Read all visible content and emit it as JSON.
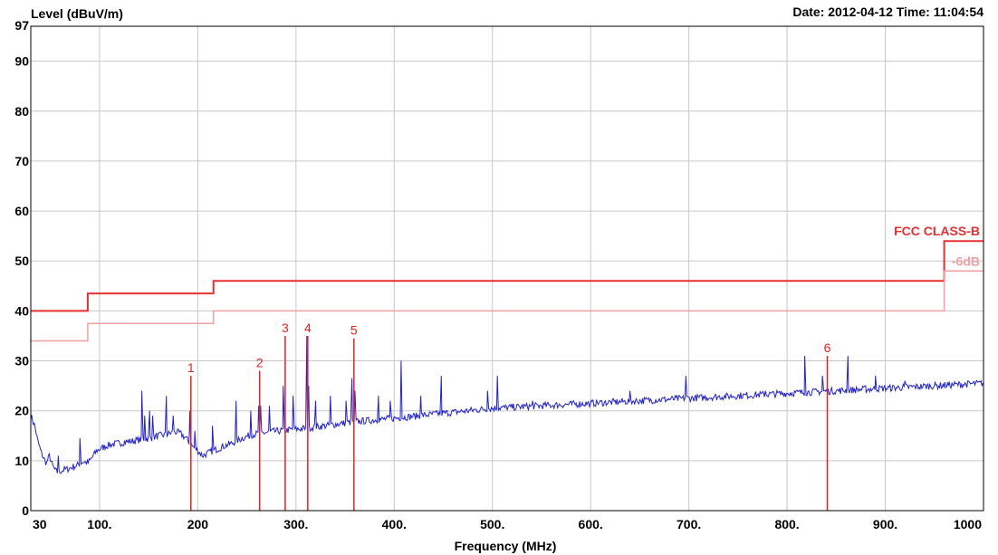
{
  "chart_data": {
    "type": "line",
    "title": "",
    "ylabel": "Level (dBuV/m)",
    "xlabel": "Frequency (MHz)",
    "date_time": "Date: 2012-04-12  Time: 11:04:54",
    "xlim": [
      30,
      1000
    ],
    "ylim": [
      0,
      97
    ],
    "x_ticks": [
      {
        "value": 30,
        "label": "30"
      },
      {
        "value": 100,
        "label": "100."
      },
      {
        "value": 200,
        "label": "200"
      },
      {
        "value": 300,
        "label": "300."
      },
      {
        "value": 400,
        "label": "400."
      },
      {
        "value": 500,
        "label": "500."
      },
      {
        "value": 600,
        "label": "600."
      },
      {
        "value": 700,
        "label": "700."
      },
      {
        "value": 800,
        "label": "800."
      },
      {
        "value": 900,
        "label": "900."
      },
      {
        "value": 1000,
        "label": "1000"
      }
    ],
    "y_ticks": [
      {
        "value": 0,
        "label": "0"
      },
      {
        "value": 10,
        "label": "10"
      },
      {
        "value": 20,
        "label": "20"
      },
      {
        "value": 30,
        "label": "30"
      },
      {
        "value": 40,
        "label": "40"
      },
      {
        "value": 50,
        "label": "50"
      },
      {
        "value": 60,
        "label": "60"
      },
      {
        "value": 70,
        "label": "70"
      },
      {
        "value": 80,
        "label": "80"
      },
      {
        "value": 90,
        "label": "90"
      },
      {
        "value": 97,
        "label": "97"
      }
    ],
    "grid": true,
    "colors": {
      "trace": "#2020d8",
      "limit": "#e83030",
      "margin": "#f0a0a0",
      "marker": "#e82020",
      "grid": "#c8c8c8"
    },
    "limit_lines": [
      {
        "name": "FCC CLASS-B",
        "points": [
          [
            30,
            40
          ],
          [
            88,
            40
          ],
          [
            88,
            43.5
          ],
          [
            216,
            43.5
          ],
          [
            216,
            46
          ],
          [
            960,
            46
          ],
          [
            960,
            54
          ],
          [
            1000,
            54
          ]
        ]
      },
      {
        "name": "-6dB",
        "points": [
          [
            30,
            34
          ],
          [
            88,
            34
          ],
          [
            88,
            37.5
          ],
          [
            216,
            37.5
          ],
          [
            216,
            40
          ],
          [
            960,
            40
          ],
          [
            960,
            48
          ],
          [
            1000,
            48
          ]
        ]
      }
    ],
    "series": [
      {
        "name": "",
        "baseline": [
          [
            30,
            19
          ],
          [
            34,
            17
          ],
          [
            37,
            14
          ],
          [
            40,
            12
          ],
          [
            43,
            10.5
          ],
          [
            46,
            9.5
          ],
          [
            49,
            11
          ],
          [
            52,
            9
          ],
          [
            55,
            8
          ],
          [
            58,
            7.5
          ],
          [
            61,
            8
          ],
          [
            64,
            8.2
          ],
          [
            67,
            8.3
          ],
          [
            70,
            8.5
          ],
          [
            73,
            8.8
          ],
          [
            77,
            9
          ],
          [
            80,
            9.5
          ],
          [
            84,
            9.8
          ],
          [
            88,
            9.5
          ],
          [
            92,
            10.5
          ],
          [
            97,
            12
          ],
          [
            102,
            12.5
          ],
          [
            107,
            13
          ],
          [
            113,
            13.3
          ],
          [
            120,
            13.5
          ],
          [
            128,
            13.8
          ],
          [
            136,
            14
          ],
          [
            144,
            14.3
          ],
          [
            152,
            14.5
          ],
          [
            160,
            15
          ],
          [
            168,
            15.2
          ],
          [
            176,
            15.8
          ],
          [
            182,
            15.5
          ],
          [
            188,
            14.5
          ],
          [
            194,
            13
          ],
          [
            200,
            12
          ],
          [
            205,
            11
          ],
          [
            210,
            11.5
          ],
          [
            216,
            12
          ],
          [
            225,
            12.8
          ],
          [
            235,
            13.5
          ],
          [
            245,
            14.5
          ],
          [
            255,
            15.2
          ],
          [
            265,
            15.5
          ],
          [
            275,
            15.8
          ],
          [
            285,
            16
          ],
          [
            295,
            16.2
          ],
          [
            310,
            16.5
          ],
          [
            330,
            17
          ],
          [
            360,
            17.8
          ],
          [
            400,
            18.5
          ],
          [
            450,
            19.5
          ],
          [
            500,
            20.5
          ],
          [
            550,
            21
          ],
          [
            600,
            21.5
          ],
          [
            650,
            22
          ],
          [
            700,
            22.5
          ],
          [
            750,
            23
          ],
          [
            800,
            23.5
          ],
          [
            850,
            24
          ],
          [
            900,
            24.5
          ],
          [
            950,
            25
          ],
          [
            1000,
            25.5
          ]
        ],
        "spikes": [
          [
            58,
            11
          ],
          [
            80,
            14.5
          ],
          [
            143,
            24
          ],
          [
            146,
            19
          ],
          [
            151,
            20
          ],
          [
            154,
            19
          ],
          [
            168,
            23
          ],
          [
            175,
            19
          ],
          [
            192,
            20
          ],
          [
            197,
            16
          ],
          [
            215,
            17
          ],
          [
            239,
            22
          ],
          [
            254,
            20
          ],
          [
            262,
            21
          ],
          [
            264,
            21
          ],
          [
            273,
            21
          ],
          [
            287,
            25
          ],
          [
            297,
            23
          ],
          [
            311,
            35
          ],
          [
            313,
            25
          ],
          [
            320,
            22
          ],
          [
            335,
            23
          ],
          [
            351,
            22
          ],
          [
            357,
            26.5
          ],
          [
            360,
            24
          ],
          [
            384,
            23
          ],
          [
            396,
            22
          ],
          [
            407,
            30
          ],
          [
            427,
            23
          ],
          [
            448,
            27
          ],
          [
            495,
            24
          ],
          [
            505,
            27
          ],
          [
            541,
            22
          ],
          [
            600,
            21.5
          ],
          [
            640,
            24
          ],
          [
            697,
            27
          ],
          [
            778,
            24
          ],
          [
            818,
            31
          ],
          [
            836,
            27
          ],
          [
            862,
            31
          ],
          [
            880,
            25
          ],
          [
            890,
            27
          ],
          [
            920,
            26
          ]
        ]
      }
    ],
    "markers": [
      {
        "label": "1",
        "frequency": 193,
        "level": 27
      },
      {
        "label": "2",
        "frequency": 263,
        "level": 28
      },
      {
        "label": "3",
        "frequency": 289,
        "level": 35
      },
      {
        "label": "4",
        "frequency": 312,
        "level": 35
      },
      {
        "label": "5",
        "frequency": 359,
        "level": 34.5
      },
      {
        "label": "6",
        "frequency": 841,
        "level": 31
      }
    ]
  }
}
